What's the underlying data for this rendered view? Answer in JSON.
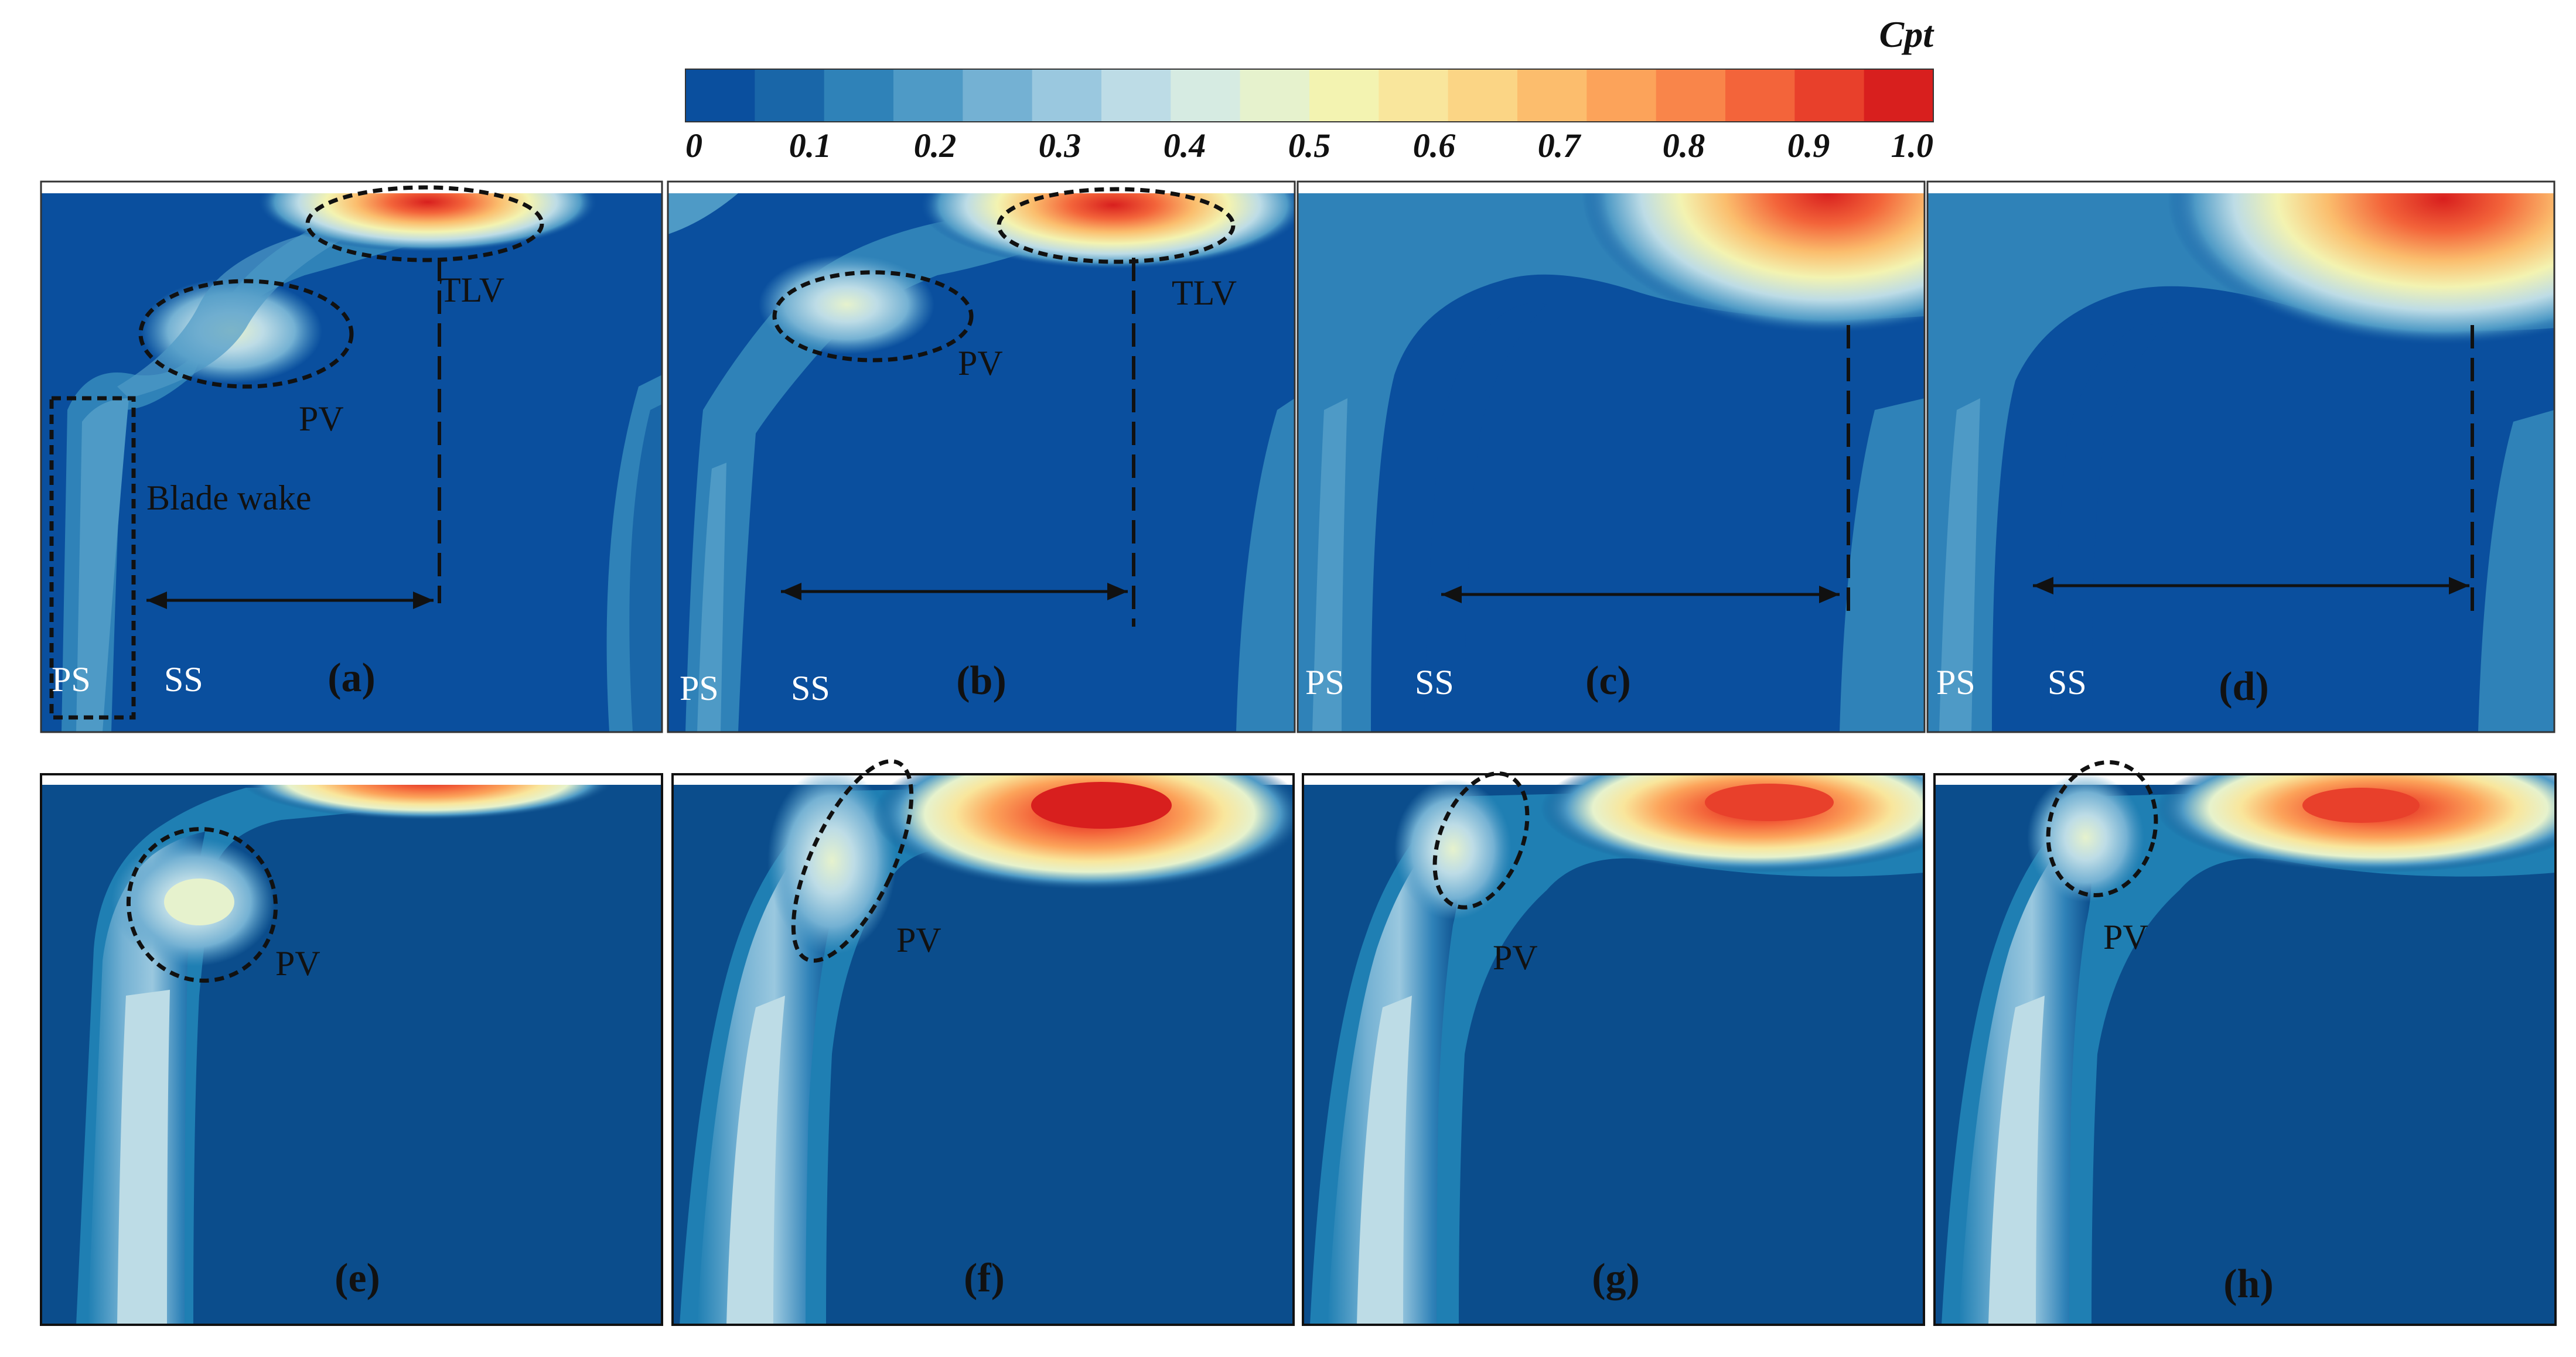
{
  "colorbar": {
    "title": "Cpt",
    "ticks": [
      "0",
      "0.1",
      "0.2",
      "0.3",
      "0.4",
      "0.5",
      "0.6",
      "0.7",
      "0.8",
      "0.9",
      "1.0"
    ],
    "colors": [
      "#0a4f9e",
      "#1966a8",
      "#2f82b8",
      "#4e9ac6",
      "#74b1d3",
      "#9ac8df",
      "#bddce6",
      "#d6ebe2",
      "#e6f2cd",
      "#f3f3b1",
      "#f9e69c",
      "#fbd585",
      "#fcbd6d",
      "#fca35a",
      "#f9854a",
      "#f3643a",
      "#e8402b",
      "#d81f1e"
    ]
  },
  "top_row": [
    {
      "label": "(a)",
      "ps": "PS",
      "ss": "SS",
      "tlv": "TLV",
      "pv": "PV",
      "wake": "Blade wake"
    },
    {
      "label": "(b)",
      "ps": "PS",
      "ss": "SS",
      "tlv": "TLV",
      "pv": "PV"
    },
    {
      "label": "(c)",
      "ps": "PS",
      "ss": "SS"
    },
    {
      "label": "(d)",
      "ps": "PS",
      "ss": "SS"
    }
  ],
  "bottom_row": [
    {
      "label": "(e)",
      "pv": "PV"
    },
    {
      "label": "(f)",
      "pv": "PV"
    },
    {
      "label": "(g)",
      "pv": "PV"
    },
    {
      "label": "(h)",
      "pv": "PV"
    }
  ]
}
